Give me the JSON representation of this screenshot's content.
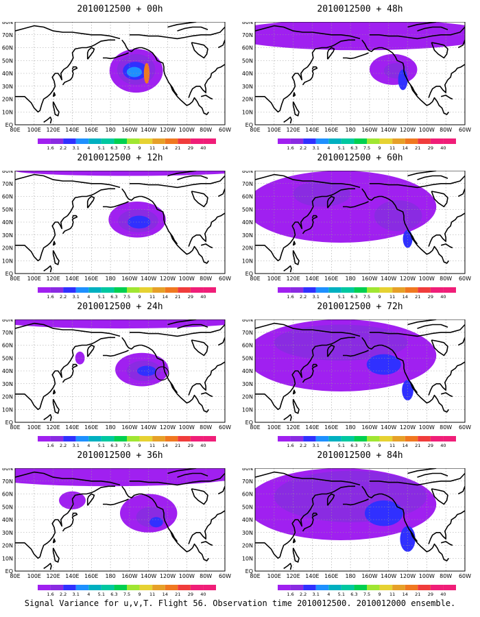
{
  "caption": "Signal Variance for u,v,T. Flight 56. Observation time 2010012500. 2010012000 ensemble.",
  "colors": {
    "levels_palette": [
      "#a020f0",
      "#8a2be2",
      "#3030ff",
      "#1e90ff",
      "#00b0c0",
      "#00c8a0",
      "#00d050",
      "#a0e632",
      "#e6d232",
      "#e6a028",
      "#f07820",
      "#f03c3c",
      "#f01e78"
    ],
    "land": "#000000",
    "grid": "#9a9a9a"
  },
  "chart_data": [
    {
      "type": "heatmap",
      "title": "2010012500 + 00h",
      "lon_ticks": [
        "80E",
        "100E",
        "120E",
        "140E",
        "160E",
        "180",
        "160W",
        "140W",
        "120W",
        "100W",
        "80W",
        "60W"
      ],
      "lat_ticks": [
        "EQ",
        "10N",
        "20N",
        "30N",
        "40N",
        "50N",
        "60N",
        "70N",
        "80N"
      ],
      "colorbar_levels": [
        "1.6",
        "2.2",
        "3.1",
        "4",
        "5.1",
        "6.3",
        "7.5",
        "9",
        "11",
        "14",
        "21",
        "29",
        "40"
      ],
      "blobs": [
        {
          "lon": 207,
          "lat": 42,
          "rx": 28,
          "ry": 17,
          "level": 1
        },
        {
          "lon": 207,
          "lat": 43,
          "rx": 20,
          "ry": 12,
          "level": 2
        },
        {
          "lon": 206,
          "lat": 42,
          "rx": 13,
          "ry": 7,
          "level": 3
        },
        {
          "lon": 205,
          "lat": 41,
          "rx": 8,
          "ry": 4,
          "level": 4
        },
        {
          "lon": 218,
          "lat": 40,
          "rx": 3,
          "ry": 8,
          "level": 11
        }
      ]
    },
    {
      "type": "heatmap",
      "title": "2010012500 + 12h",
      "lon_ticks": [
        "80E",
        "100E",
        "120E",
        "140E",
        "160E",
        "180",
        "160W",
        "140W",
        "120W",
        "100W",
        "80W",
        "60W"
      ],
      "lat_ticks": [
        "EQ",
        "10N",
        "20N",
        "30N",
        "40N",
        "50N",
        "60N",
        "70N",
        "80N"
      ],
      "colorbar_levels": [
        "1.6",
        "2.2",
        "3.1",
        "4",
        "5.1",
        "6.3",
        "7.5",
        "9",
        "11",
        "14",
        "21",
        "29",
        "40"
      ],
      "blobs": [
        {
          "lon": 200,
          "lat": 80,
          "rx": 120,
          "ry": 4,
          "level": 1
        },
        {
          "lon": 208,
          "lat": 42,
          "rx": 30,
          "ry": 14,
          "level": 1
        },
        {
          "lon": 209,
          "lat": 41,
          "rx": 21,
          "ry": 9,
          "level": 2
        },
        {
          "lon": 210,
          "lat": 40,
          "rx": 12,
          "ry": 5,
          "level": 3
        }
      ]
    },
    {
      "type": "heatmap",
      "title": "2010012500 + 24h",
      "lon_ticks": [
        "80E",
        "100E",
        "120E",
        "140E",
        "160E",
        "180",
        "160W",
        "140W",
        "120W",
        "100W",
        "80W",
        "60W"
      ],
      "lat_ticks": [
        "EQ",
        "10N",
        "20N",
        "30N",
        "40N",
        "50N",
        "60N",
        "70N",
        "80N"
      ],
      "colorbar_levels": [
        "1.6",
        "2.2",
        "3.1",
        "4",
        "5.1",
        "6.3",
        "7.5",
        "9",
        "11",
        "14",
        "21",
        "29",
        "40"
      ],
      "blobs": [
        {
          "lon": 190,
          "lat": 79,
          "rx": 130,
          "ry": 6,
          "level": 1
        },
        {
          "lon": 148,
          "lat": 50,
          "rx": 5,
          "ry": 5,
          "level": 1
        },
        {
          "lon": 213,
          "lat": 41,
          "rx": 28,
          "ry": 13,
          "level": 1
        },
        {
          "lon": 215,
          "lat": 40,
          "rx": 18,
          "ry": 8,
          "level": 2
        },
        {
          "lon": 218,
          "lat": 40,
          "rx": 10,
          "ry": 4,
          "level": 3
        }
      ],
      "annotation": {
        "shape": "circle",
        "lon": 234,
        "lat": 38,
        "r": 7
      }
    },
    {
      "type": "heatmap",
      "title": "2010012500 + 36h",
      "lon_ticks": [
        "80E",
        "100E",
        "120E",
        "140E",
        "160E",
        "180",
        "160W",
        "140W",
        "120W",
        "100W",
        "80W",
        "60W"
      ],
      "lat_ticks": [
        "EQ",
        "10N",
        "20N",
        "30N",
        "40N",
        "50N",
        "60N",
        "70N",
        "80N"
      ],
      "colorbar_levels": [
        "1.6",
        "2.2",
        "3.1",
        "4",
        "5.1",
        "6.3",
        "7.5",
        "9",
        "11",
        "14",
        "21",
        "29",
        "40"
      ],
      "blobs": [
        {
          "lon": 180,
          "lat": 75,
          "rx": 140,
          "ry": 9,
          "level": 1
        },
        {
          "lon": 140,
          "lat": 55,
          "rx": 14,
          "ry": 7,
          "level": 1
        },
        {
          "lon": 220,
          "lat": 45,
          "rx": 30,
          "ry": 15,
          "level": 1
        },
        {
          "lon": 223,
          "lat": 42,
          "rx": 16,
          "ry": 8,
          "level": 2
        },
        {
          "lon": 228,
          "lat": 38,
          "rx": 7,
          "ry": 4,
          "level": 3
        }
      ]
    },
    {
      "type": "heatmap",
      "title": "2010012500 + 48h",
      "lon_ticks": [
        "80E",
        "100E",
        "120E",
        "140E",
        "160E",
        "180",
        "160W",
        "140W",
        "120W",
        "100W",
        "80W",
        "60W"
      ],
      "lat_ticks": [
        "EQ",
        "10N",
        "20N",
        "30N",
        "40N",
        "50N",
        "60N",
        "70N",
        "80N"
      ],
      "colorbar_levels": [
        "1.6",
        "2.2",
        "3.1",
        "4",
        "5.1",
        "6.3",
        "7.5",
        "9",
        "11",
        "14",
        "21",
        "29",
        "40"
      ],
      "blobs": [
        {
          "lon": 190,
          "lat": 70,
          "rx": 140,
          "ry": 12,
          "level": 1
        },
        {
          "lon": 225,
          "lat": 43,
          "rx": 25,
          "ry": 12,
          "level": 1
        },
        {
          "lon": 228,
          "lat": 42,
          "rx": 13,
          "ry": 6,
          "level": 2
        },
        {
          "lon": 235,
          "lat": 35,
          "rx": 5,
          "ry": 8,
          "level": 3
        }
      ]
    },
    {
      "type": "heatmap",
      "title": "2010012500 + 60h",
      "lon_ticks": [
        "80E",
        "100E",
        "120E",
        "140E",
        "160E",
        "180",
        "160W",
        "140W",
        "120W",
        "100W",
        "80W",
        "60W"
      ],
      "lat_ticks": [
        "EQ",
        "10N",
        "20N",
        "30N",
        "40N",
        "50N",
        "60N",
        "70N",
        "80N"
      ],
      "colorbar_levels": [
        "1.6",
        "2.2",
        "3.1",
        "4",
        "5.1",
        "6.3",
        "7.5",
        "9",
        "11",
        "14",
        "21",
        "29",
        "40"
      ],
      "blobs": [
        {
          "lon": 170,
          "lat": 52,
          "rx": 100,
          "ry": 28,
          "level": 1
        },
        {
          "lon": 150,
          "lat": 62,
          "rx": 30,
          "ry": 10,
          "level": 2
        },
        {
          "lon": 230,
          "lat": 45,
          "rx": 25,
          "ry": 12,
          "level": 2
        },
        {
          "lon": 240,
          "lat": 27,
          "rx": 5,
          "ry": 7,
          "level": 3
        }
      ]
    },
    {
      "type": "heatmap",
      "title": "2010012500 + 72h",
      "lon_ticks": [
        "80E",
        "100E",
        "120E",
        "140E",
        "160E",
        "180",
        "160W",
        "140W",
        "120W",
        "100W",
        "80W",
        "60W"
      ],
      "lat_ticks": [
        "EQ",
        "10N",
        "20N",
        "30N",
        "40N",
        "50N",
        "60N",
        "70N",
        "80N"
      ],
      "colorbar_levels": [
        "1.6",
        "2.2",
        "3.1",
        "4",
        "5.1",
        "6.3",
        "7.5",
        "9",
        "11",
        "14",
        "21",
        "29",
        "40"
      ],
      "blobs": [
        {
          "lon": 170,
          "lat": 52,
          "rx": 100,
          "ry": 28,
          "level": 1
        },
        {
          "lon": 170,
          "lat": 62,
          "rx": 70,
          "ry": 14,
          "level": 2
        },
        {
          "lon": 215,
          "lat": 45,
          "rx": 18,
          "ry": 8,
          "level": 3
        },
        {
          "lon": 240,
          "lat": 25,
          "rx": 6,
          "ry": 8,
          "level": 3
        }
      ]
    },
    {
      "type": "heatmap",
      "title": "2010012500 + 84h",
      "lon_ticks": [
        "80E",
        "100E",
        "120E",
        "140E",
        "160E",
        "180",
        "160W",
        "140W",
        "120W",
        "100W",
        "80W",
        "60W"
      ],
      "lat_ticks": [
        "EQ",
        "10N",
        "20N",
        "30N",
        "40N",
        "50N",
        "60N",
        "70N",
        "80N"
      ],
      "colorbar_levels": [
        "1.6",
        "2.2",
        "3.1",
        "4",
        "5.1",
        "6.3",
        "7.5",
        "9",
        "11",
        "14",
        "21",
        "29",
        "40"
      ],
      "blobs": [
        {
          "lon": 170,
          "lat": 52,
          "rx": 100,
          "ry": 28,
          "level": 1
        },
        {
          "lon": 180,
          "lat": 58,
          "rx": 80,
          "ry": 20,
          "level": 2
        },
        {
          "lon": 215,
          "lat": 45,
          "rx": 20,
          "ry": 10,
          "level": 3
        },
        {
          "lon": 240,
          "lat": 25,
          "rx": 8,
          "ry": 10,
          "level": 3
        }
      ]
    }
  ]
}
